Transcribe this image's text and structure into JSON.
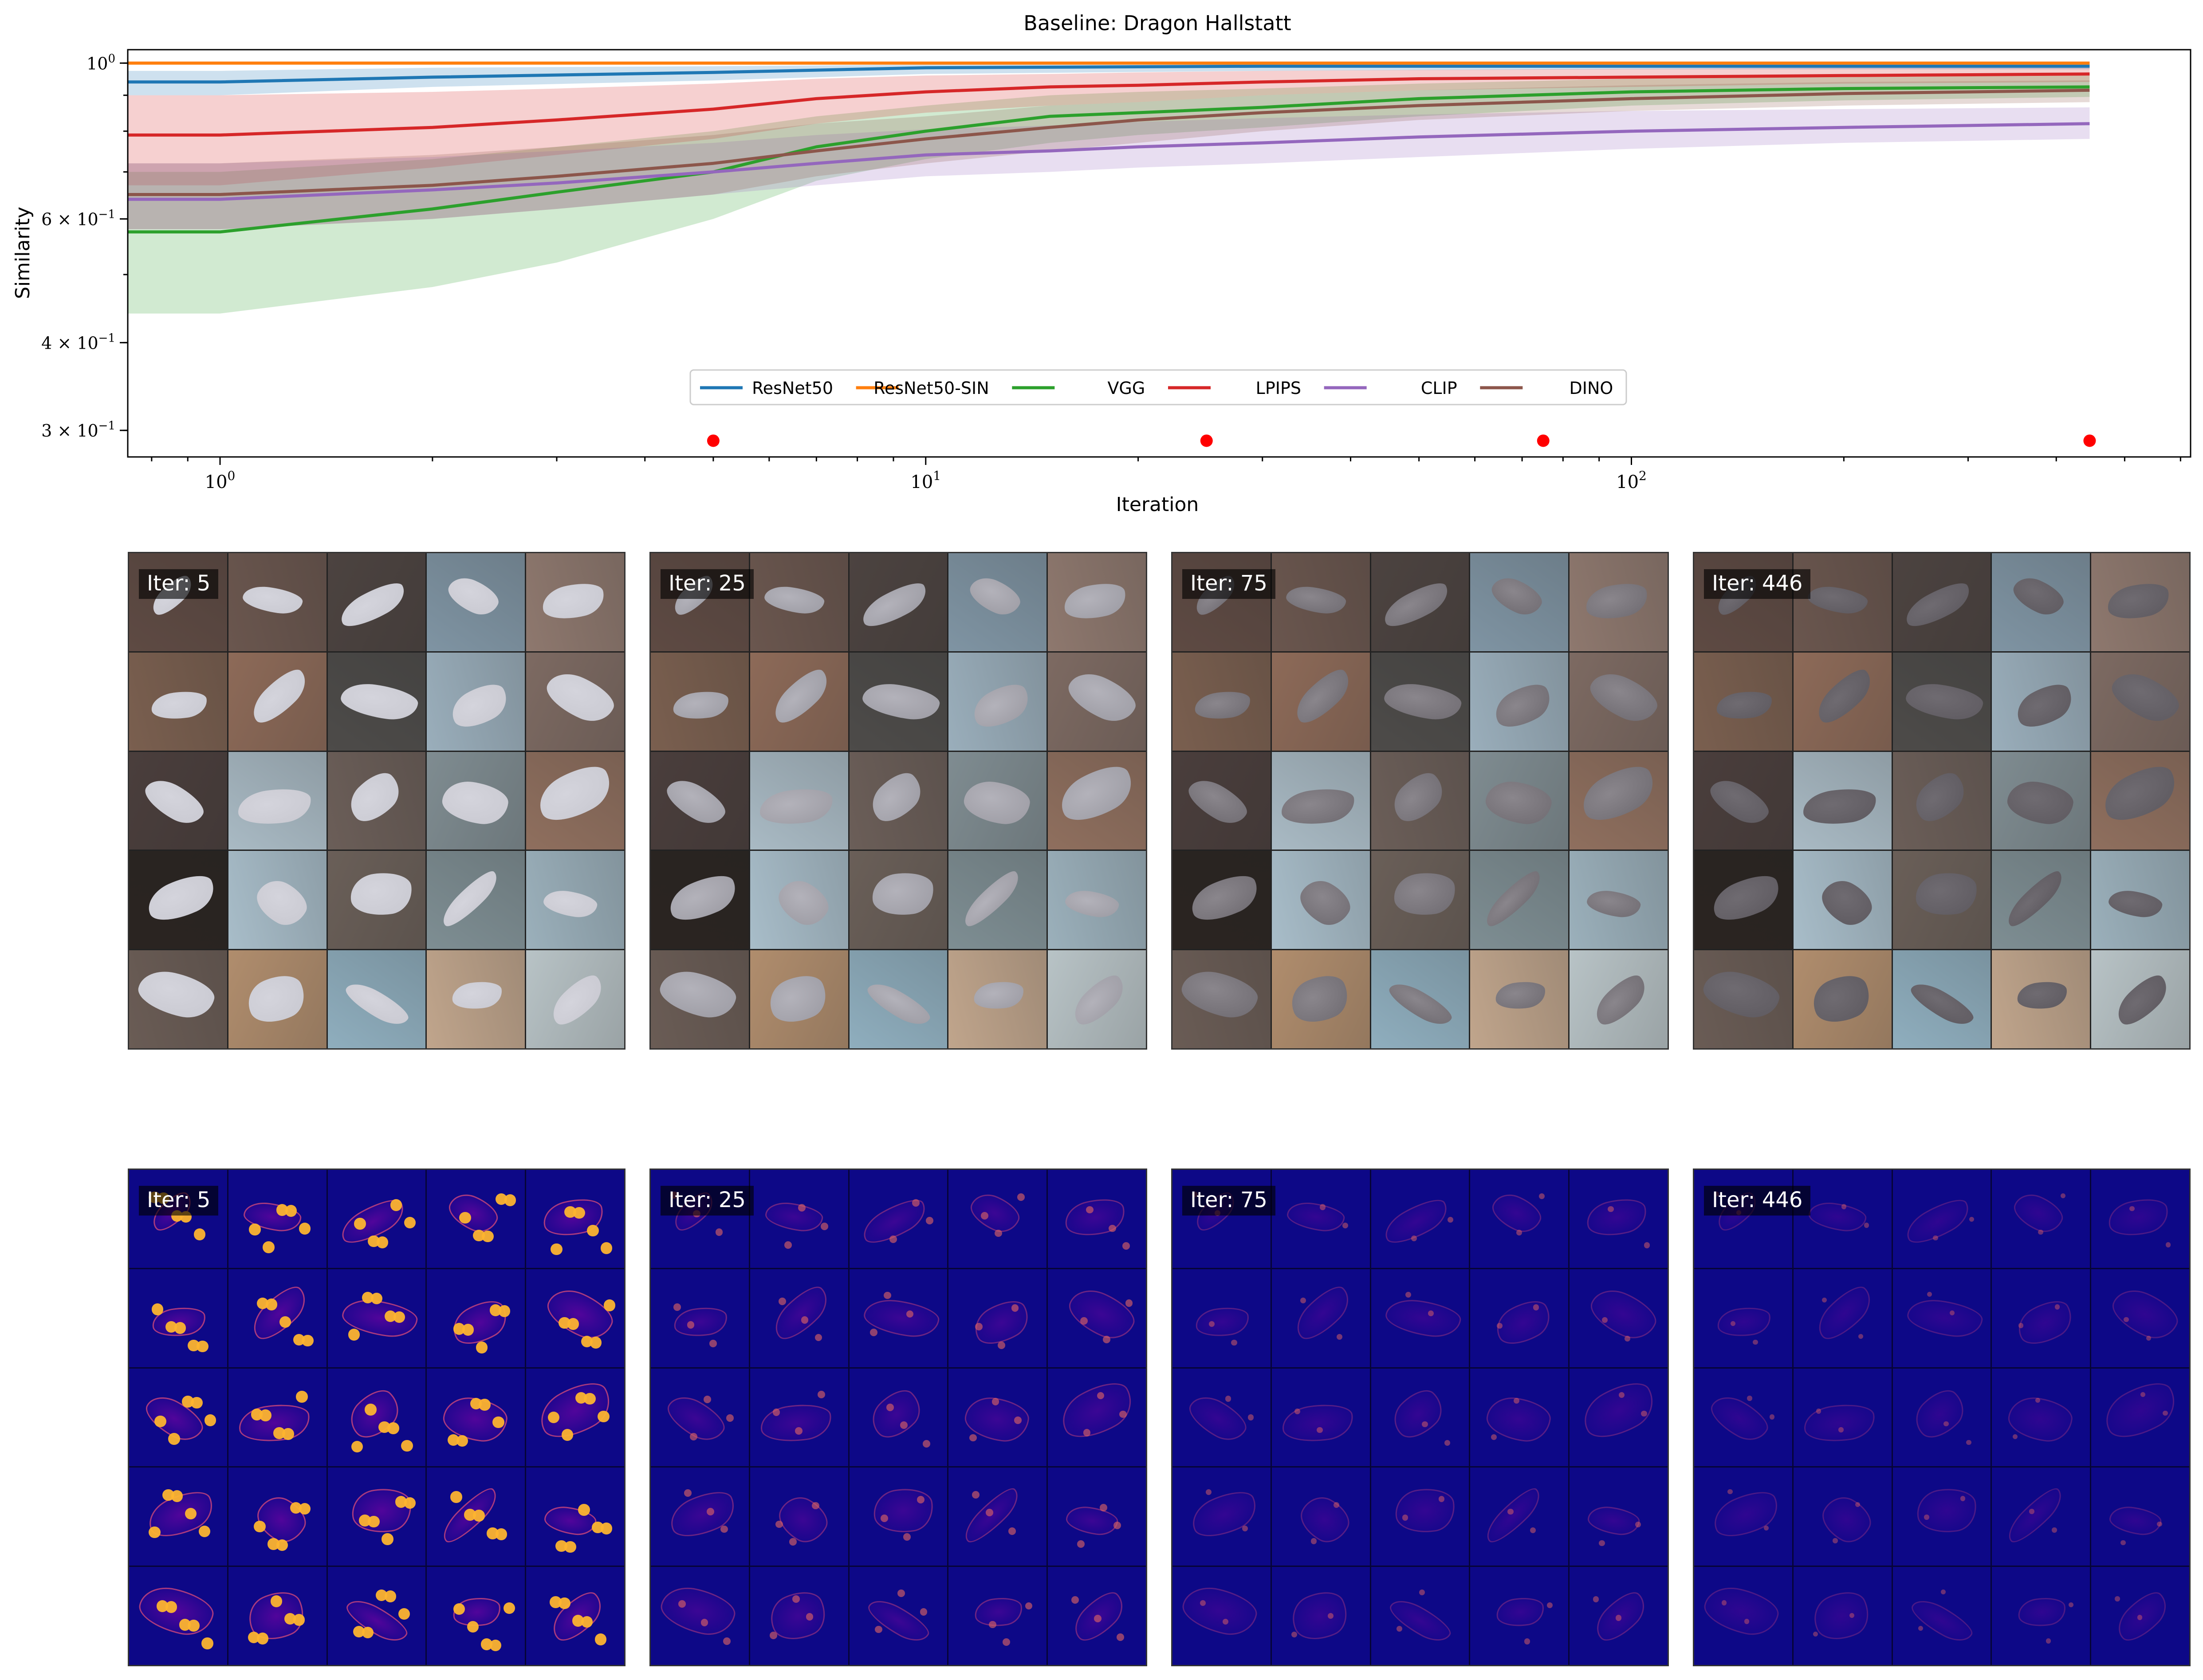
{
  "chart_data": {
    "type": "line",
    "title": "Baseline: Dragon Hallstatt",
    "xlabel": "Iteration",
    "ylabel": "Similarity",
    "xscale": "log",
    "yscale": "log",
    "xlim": [
      0.74,
      620
    ],
    "ylim": [
      0.275,
      1.045
    ],
    "xticks": [
      {
        "value": 1,
        "base": "10",
        "exp": "0"
      },
      {
        "value": 10,
        "base": "10",
        "exp": "1"
      },
      {
        "value": 100,
        "base": "10",
        "exp": "2"
      }
    ],
    "yticks": [
      {
        "value": 1.0,
        "base": "10",
        "exp": "0",
        "mant": ""
      },
      {
        "value": 0.6,
        "base": "10",
        "exp": "−1",
        "mant": "6 × "
      },
      {
        "value": 0.4,
        "base": "10",
        "exp": "−1",
        "mant": "4 × "
      },
      {
        "value": 0.3,
        "base": "10",
        "exp": "−1",
        "mant": "3 × "
      }
    ],
    "legend_position": "lower-center",
    "series": [
      {
        "name": "ResNet50",
        "color": "#1f77b4",
        "x": [
          0.74,
          1,
          2,
          5,
          10,
          30,
          100,
          446
        ],
        "y": [
          0.94,
          0.94,
          0.955,
          0.97,
          0.985,
          0.99,
          0.99,
          0.99
        ],
        "lower": [
          0.9,
          0.9,
          0.925,
          0.945,
          0.965,
          0.975,
          0.98,
          0.98
        ],
        "upper": [
          0.975,
          0.975,
          0.985,
          0.99,
          0.995,
          0.997,
          0.997,
          0.997
        ]
      },
      {
        "name": "ResNet50-SIN",
        "color": "#ff7f0e",
        "x": [
          0.74,
          1,
          10,
          100,
          446
        ],
        "y": [
          1.0,
          1.0,
          1.0,
          1.0,
          1.0
        ],
        "lower": [
          0.995,
          0.995,
          0.995,
          0.995,
          0.995
        ],
        "upper": [
          1.005,
          1.005,
          1.005,
          1.005,
          1.005
        ]
      },
      {
        "name": "VGG",
        "color": "#2ca02c",
        "x": [
          0.74,
          1,
          2,
          3,
          5,
          7,
          10,
          15,
          20,
          30,
          50,
          100,
          200,
          446
        ],
        "y": [
          0.575,
          0.575,
          0.62,
          0.655,
          0.7,
          0.76,
          0.8,
          0.84,
          0.85,
          0.865,
          0.89,
          0.91,
          0.92,
          0.925
        ],
        "lower": [
          0.44,
          0.44,
          0.48,
          0.52,
          0.6,
          0.68,
          0.73,
          0.77,
          0.79,
          0.81,
          0.84,
          0.87,
          0.885,
          0.895
        ],
        "upper": [
          0.7,
          0.7,
          0.73,
          0.76,
          0.8,
          0.84,
          0.87,
          0.9,
          0.91,
          0.92,
          0.935,
          0.95,
          0.955,
          0.96
        ]
      },
      {
        "name": "LPIPS",
        "color": "#d62728",
        "x": [
          0.74,
          1,
          2,
          3,
          5,
          7,
          10,
          15,
          20,
          30,
          50,
          100,
          200,
          446
        ],
        "y": [
          0.79,
          0.79,
          0.81,
          0.83,
          0.86,
          0.89,
          0.91,
          0.925,
          0.93,
          0.94,
          0.95,
          0.955,
          0.96,
          0.965
        ],
        "lower": [
          0.67,
          0.67,
          0.71,
          0.74,
          0.78,
          0.82,
          0.85,
          0.87,
          0.88,
          0.9,
          0.915,
          0.925,
          0.935,
          0.94
        ],
        "upper": [
          0.9,
          0.9,
          0.91,
          0.92,
          0.935,
          0.95,
          0.96,
          0.965,
          0.97,
          0.975,
          0.978,
          0.982,
          0.985,
          0.985
        ]
      },
      {
        "name": "CLIP",
        "color": "#9467bd",
        "x": [
          0.74,
          1,
          2,
          3,
          5,
          7,
          10,
          15,
          20,
          30,
          50,
          100,
          200,
          446
        ],
        "y": [
          0.64,
          0.64,
          0.66,
          0.675,
          0.7,
          0.72,
          0.74,
          0.75,
          0.76,
          0.77,
          0.785,
          0.8,
          0.81,
          0.82
        ],
        "lower": [
          0.58,
          0.58,
          0.6,
          0.62,
          0.65,
          0.67,
          0.69,
          0.7,
          0.71,
          0.72,
          0.735,
          0.755,
          0.77,
          0.78
        ],
        "upper": [
          0.72,
          0.72,
          0.735,
          0.75,
          0.77,
          0.79,
          0.805,
          0.815,
          0.825,
          0.835,
          0.845,
          0.855,
          0.86,
          0.865
        ]
      },
      {
        "name": "DINO",
        "color": "#8c564b",
        "x": [
          0.74,
          1,
          2,
          3,
          5,
          7,
          10,
          15,
          20,
          30,
          50,
          100,
          200,
          446
        ],
        "y": [
          0.65,
          0.65,
          0.67,
          0.69,
          0.72,
          0.75,
          0.78,
          0.81,
          0.83,
          0.85,
          0.87,
          0.89,
          0.905,
          0.915
        ],
        "lower": [
          0.58,
          0.58,
          0.6,
          0.62,
          0.65,
          0.69,
          0.72,
          0.75,
          0.77,
          0.8,
          0.83,
          0.855,
          0.87,
          0.88
        ],
        "upper": [
          0.72,
          0.72,
          0.74,
          0.76,
          0.79,
          0.82,
          0.84,
          0.87,
          0.88,
          0.9,
          0.915,
          0.93,
          0.94,
          0.945
        ]
      }
    ],
    "markers": {
      "color": "#ff0000",
      "x": [
        5,
        25,
        75,
        446
      ],
      "y": 0.29
    }
  },
  "render_panels": {
    "iterations": [
      "Iter: 5",
      "Iter: 25",
      "Iter: 75",
      "Iter: 446"
    ]
  },
  "error_panels": {
    "iterations": [
      "Iter: 5",
      "Iter: 25",
      "Iter: 75",
      "Iter: 446"
    ],
    "background_color": "#0d0887",
    "highlight_levels": [
      1.0,
      0.45,
      0.25,
      0.15
    ]
  }
}
